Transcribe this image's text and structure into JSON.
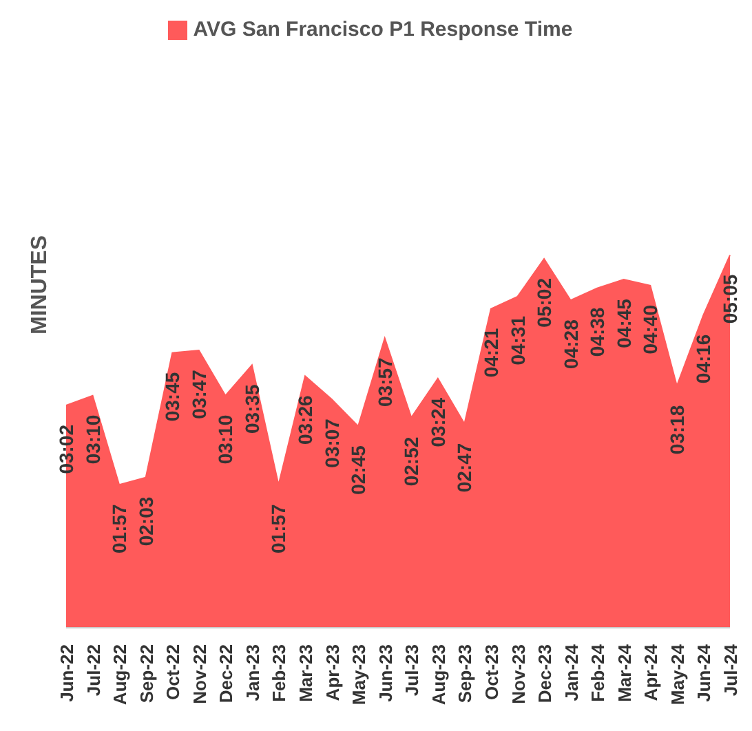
{
  "chart_data": {
    "type": "area",
    "ylabel": "MINUTES",
    "categories": [
      "Jun-22",
      "Jul-22",
      "Aug-22",
      "Sep-22",
      "Oct-22",
      "Nov-22",
      "Dec-22",
      "Jan-23",
      "Feb-23",
      "Mar-23",
      "Apr-23",
      "May-23",
      "Jun-23",
      "Jul-23",
      "Aug-23",
      "Sep-23",
      "Oct-23",
      "Nov-23",
      "Dec-23",
      "Jan-24",
      "Feb-24",
      "Mar-24",
      "Apr-24",
      "May-24",
      "Jun-24",
      "Jul-24"
    ],
    "series": [
      {
        "name": "AVG San Francisco P1 Response Time",
        "color": "#ff5a5a",
        "values": [
          3.033,
          3.167,
          1.95,
          2.05,
          3.75,
          3.783,
          3.167,
          3.583,
          1.95,
          3.433,
          3.117,
          2.75,
          3.95,
          2.867,
          3.4,
          2.783,
          4.35,
          4.517,
          5.033,
          4.467,
          4.633,
          4.75,
          4.667,
          3.3,
          4.267,
          5.083
        ],
        "value_labels": [
          "03:02",
          "03:10",
          "01:57",
          "02:03",
          "03:45",
          "03:47",
          "03:10",
          "03:35",
          "01:57",
          "03:26",
          "03:07",
          "02:45",
          "03:57",
          "02:52",
          "03:24",
          "02:47",
          "04:21",
          "04:31",
          "05:02",
          "04:28",
          "04:38",
          "04:45",
          "04:40",
          "03:18",
          "04:16",
          "05:05"
        ]
      }
    ],
    "legend": "top"
  }
}
